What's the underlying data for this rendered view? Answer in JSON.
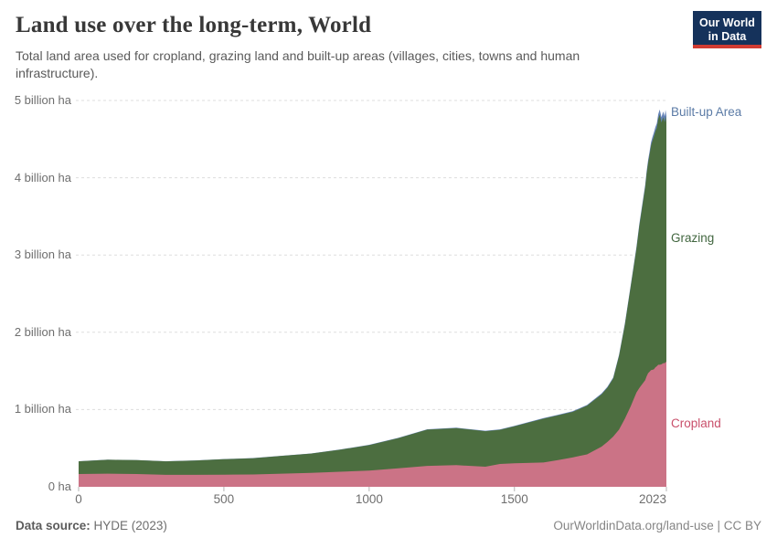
{
  "header": {
    "title": "Land use over the long-term, World",
    "subtitle": "Total land area used for cropland, grazing land and built-up areas (villages, cities, towns and human infrastructure).",
    "logo": {
      "line1": "Our World",
      "line2": "in Data",
      "bg_color": "#15325b",
      "accent_color": "#d13b32"
    }
  },
  "footer": {
    "source_label": "Data source:",
    "source_value": "HYDE (2023)",
    "link": "OurWorldinData.org/land-use",
    "license": "CC BY"
  },
  "chart_data": {
    "type": "area",
    "stacked": true,
    "title": "Land use over the long-term, World",
    "xlabel": "",
    "ylabel": "",
    "xlim": [
      0,
      2023
    ],
    "ylim": [
      0,
      5
    ],
    "grid": "dashed-horizontal",
    "x": [
      0,
      100,
      200,
      300,
      400,
      500,
      600,
      700,
      800,
      900,
      1000,
      1100,
      1200,
      1300,
      1400,
      1450,
      1500,
      1600,
      1650,
      1700,
      1750,
      1800,
      1820,
      1840,
      1860,
      1880,
      1900,
      1910,
      1920,
      1930,
      1940,
      1950,
      1955,
      1960,
      1965,
      1970,
      1975,
      1980,
      1985,
      1990,
      1995,
      2000,
      2006,
      2012,
      2017,
      2020,
      2023
    ],
    "series": [
      {
        "name": "Cropland",
        "color": "#cb7386",
        "label_color": "#c9506b",
        "values": [
          0.165,
          0.17,
          0.165,
          0.155,
          0.155,
          0.157,
          0.16,
          0.17,
          0.18,
          0.195,
          0.21,
          0.24,
          0.27,
          0.28,
          0.26,
          0.295,
          0.305,
          0.315,
          0.345,
          0.38,
          0.42,
          0.52,
          0.58,
          0.65,
          0.74,
          0.88,
          1.04,
          1.13,
          1.22,
          1.28,
          1.33,
          1.38,
          1.43,
          1.47,
          1.49,
          1.51,
          1.515,
          1.52,
          1.545,
          1.56,
          1.58,
          1.58,
          1.585,
          1.6,
          1.6,
          1.61,
          1.62
        ]
      },
      {
        "name": "Grazing",
        "color": "#4c6e40",
        "label_color": "#41663f",
        "values": [
          0.165,
          0.18,
          0.18,
          0.175,
          0.185,
          0.2,
          0.21,
          0.23,
          0.25,
          0.285,
          0.33,
          0.39,
          0.47,
          0.48,
          0.46,
          0.443,
          0.478,
          0.567,
          0.58,
          0.59,
          0.63,
          0.677,
          0.702,
          0.752,
          0.953,
          1.214,
          1.545,
          1.703,
          1.862,
          2.1,
          2.298,
          2.495,
          2.621,
          2.72,
          2.807,
          2.903,
          2.964,
          3.014,
          3.055,
          3.085,
          3.182,
          3.238,
          3.13,
          3.185,
          3.12,
          3.19,
          3.1
        ]
      },
      {
        "name": "Built-up Area",
        "color": "#6583b7",
        "label_color": "#5b7ba6",
        "values": [
          0.001,
          0.001,
          0.001,
          0.001,
          0.001,
          0.002,
          0.002,
          0.002,
          0.002,
          0.003,
          0.003,
          0.004,
          0.004,
          0.005,
          0.005,
          0.005,
          0.006,
          0.007,
          0.007,
          0.008,
          0.009,
          0.011,
          0.012,
          0.013,
          0.015,
          0.017,
          0.02,
          0.022,
          0.024,
          0.026,
          0.029,
          0.032,
          0.034,
          0.037,
          0.04,
          0.044,
          0.048,
          0.052,
          0.055,
          0.058,
          0.06,
          0.065,
          0.068,
          0.072,
          0.075,
          0.077,
          0.08
        ]
      }
    ],
    "y_ticks": [
      {
        "value": 0,
        "label": "0 ha"
      },
      {
        "value": 1,
        "label": "1 billion ha"
      },
      {
        "value": 2,
        "label": "2 billion ha"
      },
      {
        "value": 3,
        "label": "3 billion ha"
      },
      {
        "value": 4,
        "label": "4 billion ha"
      },
      {
        "value": 5,
        "label": "5 billion ha"
      }
    ],
    "x_ticks": [
      {
        "value": 0,
        "label": "0"
      },
      {
        "value": 500,
        "label": "500"
      },
      {
        "value": 1000,
        "label": "1000"
      },
      {
        "value": 1500,
        "label": "1500"
      },
      {
        "value": 2023,
        "label": "2023"
      }
    ]
  }
}
